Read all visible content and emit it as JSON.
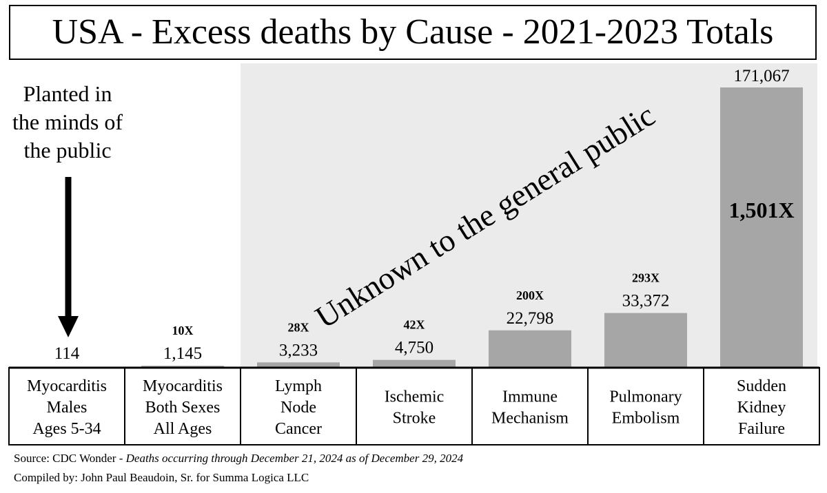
{
  "chart_data": {
    "type": "bar",
    "title": "USA - Excess deaths by Cause - 2021-2023 Totals",
    "categories": [
      [
        "Myocarditis",
        "Males",
        "Ages 5-34"
      ],
      [
        "Myocarditis",
        "Both Sexes",
        "All Ages"
      ],
      [
        "Lymph",
        "Node",
        "Cancer"
      ],
      [
        "Ischemic",
        "Stroke"
      ],
      [
        "Immune",
        "Mechanism"
      ],
      [
        "Pulmonary",
        "Embolism"
      ],
      [
        "Sudden",
        "Kidney",
        "Failure"
      ]
    ],
    "values": [
      114,
      1145,
      3233,
      4750,
      22798,
      33372,
      171067
    ],
    "value_labels": [
      "114",
      "1,145",
      "3,233",
      "4,750",
      "22,798",
      "33,372",
      "171,067"
    ],
    "multipliers": [
      "",
      "10X",
      "28X",
      "42X",
      "200X",
      "293X",
      "1,501X"
    ],
    "ylim": [
      0,
      171067
    ],
    "grid": false,
    "annotations": {
      "left_label": [
        "Planted in",
        "the minds of",
        "the public"
      ],
      "diagonal_label": "Unknown to the general public"
    },
    "colors": {
      "bar": "#a6a6a6",
      "shaded_region": "#ebebeb",
      "text": "#000000"
    }
  },
  "footer": {
    "source_prefix": "Source:  CDC Wonder - ",
    "source_italic": "Deaths occurring through December 21, 2024 as of December 29, 2024",
    "compiled": "Compiled by:  John Paul Beaudoin, Sr. for Summa Logica LLC"
  }
}
